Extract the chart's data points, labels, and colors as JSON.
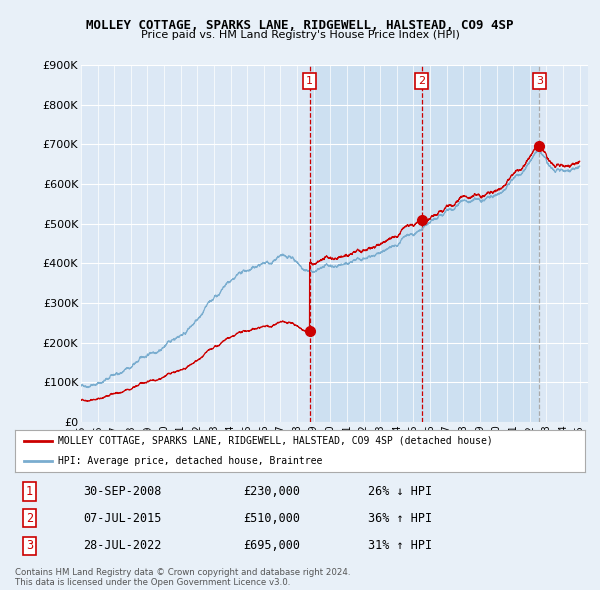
{
  "title": "MOLLEY COTTAGE, SPARKS LANE, RIDGEWELL, HALSTEAD, CO9 4SP",
  "subtitle": "Price paid vs. HM Land Registry's House Price Index (HPI)",
  "ylim": [
    0,
    900000
  ],
  "yticks": [
    0,
    100000,
    200000,
    300000,
    400000,
    500000,
    600000,
    700000,
    800000,
    900000
  ],
  "ytick_labels": [
    "£0",
    "£100K",
    "£200K",
    "£300K",
    "£400K",
    "£500K",
    "£600K",
    "£700K",
    "£800K",
    "£900K"
  ],
  "sale_dates": [
    2008.75,
    2015.5,
    2022.58
  ],
  "sale_prices": [
    230000,
    510000,
    695000
  ],
  "sale_labels": [
    "1",
    "2",
    "3"
  ],
  "legend_property": "MOLLEY COTTAGE, SPARKS LANE, RIDGEWELL, HALSTEAD, CO9 4SP (detached house)",
  "legend_hpi": "HPI: Average price, detached house, Braintree",
  "table_data": [
    [
      "1",
      "30-SEP-2008",
      "£230,000",
      "26% ↓ HPI"
    ],
    [
      "2",
      "07-JUL-2015",
      "£510,000",
      "36% ↑ HPI"
    ],
    [
      "3",
      "28-JUL-2022",
      "£695,000",
      "31% ↑ HPI"
    ]
  ],
  "footnote": "Contains HM Land Registry data © Crown copyright and database right 2024.\nThis data is licensed under the Open Government Licence v3.0.",
  "line_color_property": "#cc0000",
  "line_color_hpi": "#7aadcf",
  "background_color": "#e8f0f8",
  "plot_bg_color": "#dce8f5",
  "highlight_color": "#c8ddf0"
}
